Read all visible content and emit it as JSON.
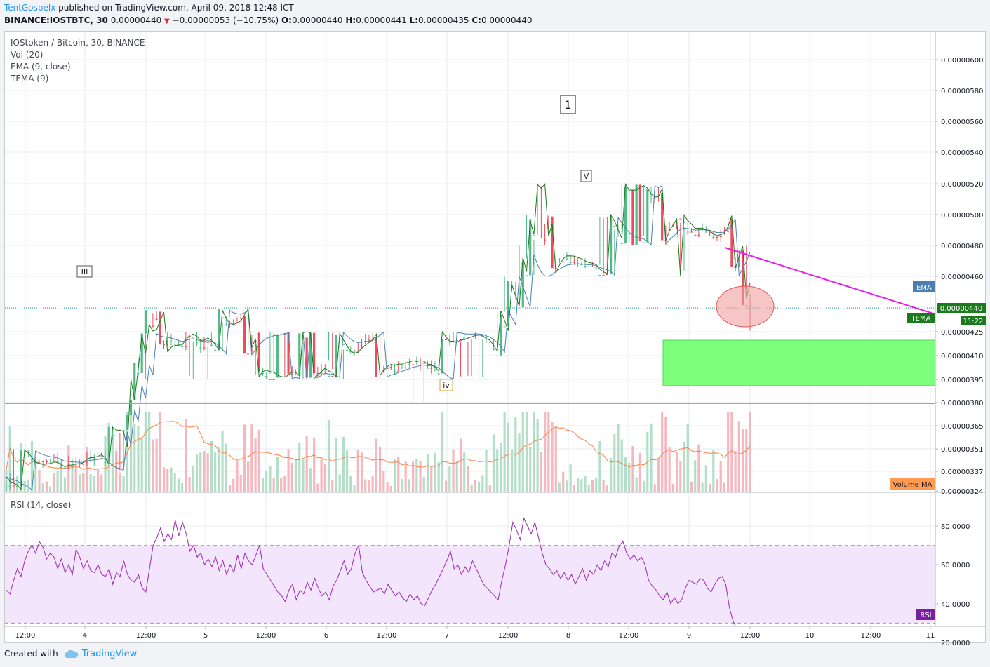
{
  "header": {
    "author": "TentGospelx",
    "published": "published on TradingView.com, April 09, 2018 12:48 ICT",
    "symbol": "BINANCE:IOSTBTC, 30",
    "price": "0.00000440",
    "change": "−0.00000053 (−10.75%)",
    "o_label": "O:",
    "o": "0.00000440",
    "h_label": "H:",
    "h": "0.00000441",
    "l_label": "L:",
    "l": "0.00000435",
    "c_label": "C:",
    "c": "0.00000440"
  },
  "legend": {
    "title": "IOStoken / Bitcoin, 30, BINANCE",
    "vol": "Vol (20)",
    "ema": "EMA (9, close)",
    "tema": "TEMA (9)",
    "rsi": "RSI (14, close)"
  },
  "annotations": {
    "wave_1": "1",
    "wave_v": "V",
    "wave_iii": "III",
    "wave_iv": "iv"
  },
  "badges": {
    "ema": "EMA",
    "tema": "TEMA",
    "last_price": "0.00000440",
    "countdown": "11:22",
    "volume_ma": "Volume MA",
    "rsi": "RSI"
  },
  "footer": {
    "created_with": "Created with",
    "brand": "TradingView"
  },
  "colors": {
    "up": "#53b987",
    "down": "#eb4d5c",
    "ema": "#4a7fb0",
    "tema": "#1b7a1b",
    "trendline": "#e91ee9",
    "support": "#ff9800",
    "zone": "#66ff66",
    "circle": "#f0a0a0",
    "rsi_line": "#9c27b0",
    "rsi_band": "#f3e5fc",
    "volume_ma": "#ff7f3f"
  },
  "chart_data": [
    {
      "type": "candlestick",
      "title": "IOStoken / Bitcoin, 30, BINANCE",
      "x_tick_labels": [
        "12:00",
        "4",
        "12:00",
        "5",
        "12:00",
        "6",
        "12:00",
        "7",
        "12:00",
        "8",
        "12:00",
        "9",
        "12:00",
        "10",
        "12:00",
        "11"
      ],
      "y_tick_labels": [
        "0.00000600",
        "0.00000580",
        "0.00000560",
        "0.00000540",
        "0.00000520",
        "0.00000500",
        "0.00000480",
        "0.00000460",
        "0.00000440",
        "0.00000425",
        "0.00000410",
        "0.00000395",
        "0.00000380",
        "0.00000365",
        "0.00000351",
        "0.00000337",
        "0.00000324"
      ],
      "ylim": [
        3.24e-06,
        6e-06
      ],
      "close_path": [
        [
          0,
          3.3e-06
        ],
        [
          6,
          3.4e-06
        ],
        [
          8,
          3.45e-06
        ],
        [
          12,
          3.43e-06
        ],
        [
          16,
          3.48e-06
        ],
        [
          18,
          3.46e-06
        ],
        [
          22,
          3.43e-06
        ],
        [
          26,
          3.4e-06
        ],
        [
          29,
          3.55e-06
        ],
        [
          32,
          3.52e-06
        ],
        [
          34,
          3.95e-06
        ],
        [
          37,
          4.12e-06
        ],
        [
          39,
          4.36e-06
        ],
        [
          42,
          4.2e-06
        ],
        [
          44,
          4.14e-06
        ],
        [
          47,
          4.2e-06
        ],
        [
          50,
          4.12e-06
        ],
        [
          53,
          4.18e-06
        ],
        [
          55,
          4.15e-06
        ],
        [
          58,
          4.26e-06
        ],
        [
          60,
          4.36e-06
        ],
        [
          63,
          4.32e-06
        ],
        [
          66,
          4.2e-06
        ],
        [
          69,
          4.05e-06
        ],
        [
          72,
          4.08e-06
        ],
        [
          75,
          4.12e-06
        ],
        [
          78,
          4.05e-06
        ],
        [
          81,
          4.12e-06
        ],
        [
          84,
          4.08e-06
        ],
        [
          87,
          4.03e-06
        ],
        [
          89,
          4.08e-06
        ],
        [
          92,
          4.18e-06
        ],
        [
          94,
          4.24e-06
        ],
        [
          97,
          4.14e-06
        ],
        [
          100,
          4.12e-06
        ],
        [
          103,
          4.04e-06
        ],
        [
          106,
          4.04e-06
        ],
        [
          109,
          4e-06
        ],
        [
          112,
          3.99e-06
        ],
        [
          115,
          4.01e-06
        ],
        [
          117,
          4.04e-06
        ],
        [
          119,
          4.13e-06
        ],
        [
          122,
          4.15e-06
        ],
        [
          124,
          4.12e-06
        ],
        [
          127,
          4.11e-06
        ],
        [
          130,
          4.14e-06
        ],
        [
          133,
          4.2e-06
        ],
        [
          135,
          4.28e-06
        ],
        [
          137,
          4.45e-06
        ],
        [
          139,
          4.52e-06
        ],
        [
          141,
          4.7e-06
        ],
        [
          143,
          4.85e-06
        ],
        [
          145,
          4.98e-06
        ],
        [
          146,
          4.94e-06
        ],
        [
          148,
          4.8e-06
        ],
        [
          150,
          4.7e-06
        ],
        [
          152,
          4.66e-06
        ],
        [
          154,
          4.72e-06
        ],
        [
          156,
          4.7e-06
        ],
        [
          158,
          4.74e-06
        ],
        [
          160,
          4.72e-06
        ],
        [
          162,
          4.78e-06
        ],
        [
          164,
          4.8e-06
        ],
        [
          166,
          4.85e-06
        ],
        [
          168,
          4.98e-06
        ],
        [
          170,
          5.02e-06
        ],
        [
          172,
          5e-06
        ],
        [
          174,
          4.98e-06
        ],
        [
          176,
          5.08e-06
        ],
        [
          178,
          5.06e-06
        ],
        [
          180,
          4.9e-06
        ],
        [
          182,
          4.85e-06
        ],
        [
          184,
          4.8e-06
        ],
        [
          186,
          4.9e-06
        ],
        [
          188,
          4.92e-06
        ],
        [
          190,
          4.9e-06
        ],
        [
          192,
          4.92e-06
        ],
        [
          194,
          4.95e-06
        ],
        [
          196,
          4.9e-06
        ],
        [
          198,
          4.76e-06
        ],
        [
          200,
          4.62e-06
        ],
        [
          202,
          4.5e-06
        ],
        [
          203,
          4.4e-06
        ]
      ],
      "volume_ma_period": 20,
      "ema_period": 9,
      "tema_period": 9
    },
    {
      "type": "line",
      "title": "RSI (14, close)",
      "y_tick_labels": [
        "80.0000",
        "60.0000",
        "40.0000",
        "20.0000"
      ],
      "ylim": [
        17,
        86
      ],
      "bands": [
        30,
        70
      ],
      "values": [
        47,
        45,
        52,
        58,
        54,
        62,
        67,
        70,
        66,
        72,
        69,
        63,
        66,
        64,
        58,
        63,
        56,
        60,
        55,
        68,
        64,
        58,
        62,
        57,
        56,
        60,
        55,
        54,
        58,
        50,
        56,
        54,
        62,
        55,
        52,
        51,
        55,
        48,
        46,
        58,
        70,
        74,
        79,
        72,
        76,
        73,
        83,
        75,
        82,
        76,
        67,
        70,
        64,
        66,
        60,
        63,
        59,
        64,
        57,
        62,
        55,
        60,
        56,
        65,
        58,
        66,
        62,
        60,
        65,
        70,
        58,
        55,
        52,
        49,
        46,
        44,
        41,
        47,
        50,
        42,
        47,
        45,
        51,
        47,
        53,
        48,
        44,
        46,
        42,
        49,
        52,
        57,
        62,
        55,
        58,
        66,
        70,
        56,
        52,
        49,
        46,
        47,
        48,
        45,
        50,
        47,
        44,
        46,
        43,
        41,
        45,
        42,
        44,
        40,
        39,
        43,
        47,
        50,
        54,
        58,
        62,
        67,
        58,
        60,
        55,
        59,
        56,
        62,
        58,
        54,
        50,
        48,
        46,
        44,
        42,
        52,
        60,
        70,
        82,
        78,
        73,
        84,
        80,
        76,
        82,
        74,
        66,
        60,
        58,
        55,
        57,
        53,
        56,
        52,
        55,
        50,
        54,
        58,
        52,
        57,
        55,
        60,
        57,
        62,
        59,
        66,
        64,
        70,
        72,
        66,
        63,
        65,
        62,
        64,
        60,
        52,
        49,
        47,
        44,
        42,
        46,
        40,
        43,
        40,
        42,
        48,
        52,
        51,
        50,
        53,
        52,
        48,
        46,
        50,
        53,
        54,
        50,
        38,
        31,
        27,
        24,
        23,
        24,
        25
      ]
    }
  ]
}
